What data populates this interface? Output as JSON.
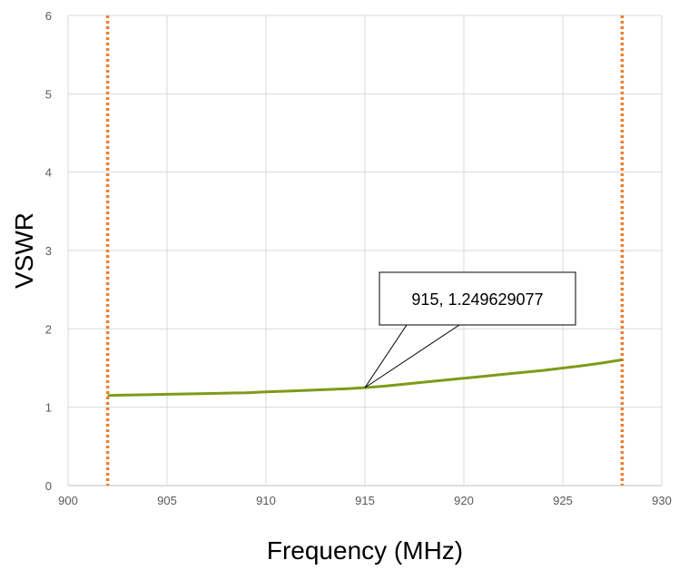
{
  "chart_data": {
    "type": "line",
    "xlabel": "Frequency (MHz)",
    "ylabel": "VSWR",
    "xlim": [
      900,
      930
    ],
    "ylim": [
      0,
      6
    ],
    "xticks": [
      900,
      905,
      910,
      915,
      920,
      925,
      930
    ],
    "yticks": [
      0,
      1,
      2,
      3,
      4,
      5,
      6
    ],
    "grid": true,
    "series": [
      {
        "color": "#7f9a1a",
        "x": [
          902,
          903,
          904,
          905,
          906,
          907,
          908,
          909,
          910,
          911,
          912,
          913,
          914,
          915,
          916,
          917,
          918,
          919,
          920,
          921,
          922,
          923,
          924,
          925,
          926,
          927,
          928
        ],
        "y": [
          1.15,
          1.155,
          1.16,
          1.165,
          1.17,
          1.175,
          1.18,
          1.185,
          1.195,
          1.205,
          1.215,
          1.225,
          1.235,
          1.249629077,
          1.27,
          1.295,
          1.32,
          1.345,
          1.37,
          1.395,
          1.42,
          1.445,
          1.47,
          1.5,
          1.53,
          1.565,
          1.605
        ]
      }
    ],
    "markers": [
      {
        "orientation": "vertical",
        "x": 902,
        "style": "dotted",
        "color": "#ed7d31"
      },
      {
        "orientation": "vertical",
        "x": 928,
        "style": "dotted",
        "color": "#ed7d31"
      }
    ],
    "annotation": {
      "text": "915, 1.249629077",
      "x": 915,
      "y": 1.249629077
    }
  }
}
